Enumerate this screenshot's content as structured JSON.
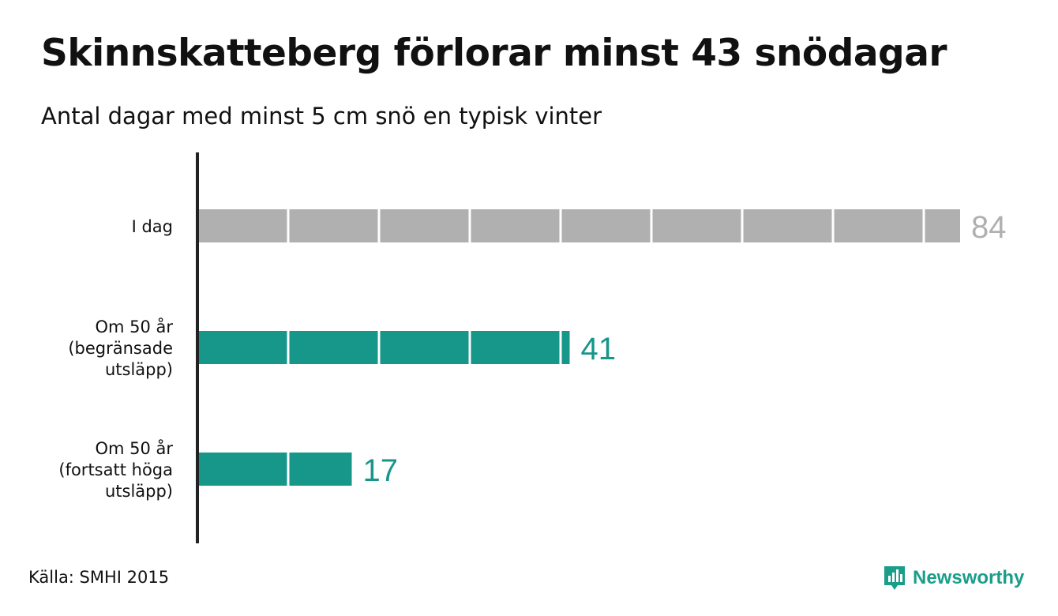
{
  "title": "Skinnskatteberg förlorar minst 43 snödagar",
  "subtitle": "Antal dagar med minst 5 cm snö en typisk vinter",
  "source": "Källa: SMHI 2015",
  "brand": {
    "name": "Newsworthy",
    "icon": "newsworthy-logo-icon",
    "color": "#1a9e8a"
  },
  "colors": {
    "today": "#b0b0b0",
    "future": "#17968a",
    "axis": "#222222",
    "divider": "#ffffff"
  },
  "chart_data": {
    "type": "bar",
    "orientation": "horizontal",
    "categories": [
      [
        "I dag"
      ],
      [
        "Om 50 år",
        "(begränsade",
        "utsläpp)"
      ],
      [
        "Om 50 år",
        "(fortsatt höga",
        "utsläpp)"
      ]
    ],
    "values": [
      84,
      41,
      17
    ],
    "segment_size": 10,
    "xlim": [
      0,
      84
    ],
    "grid": false
  }
}
